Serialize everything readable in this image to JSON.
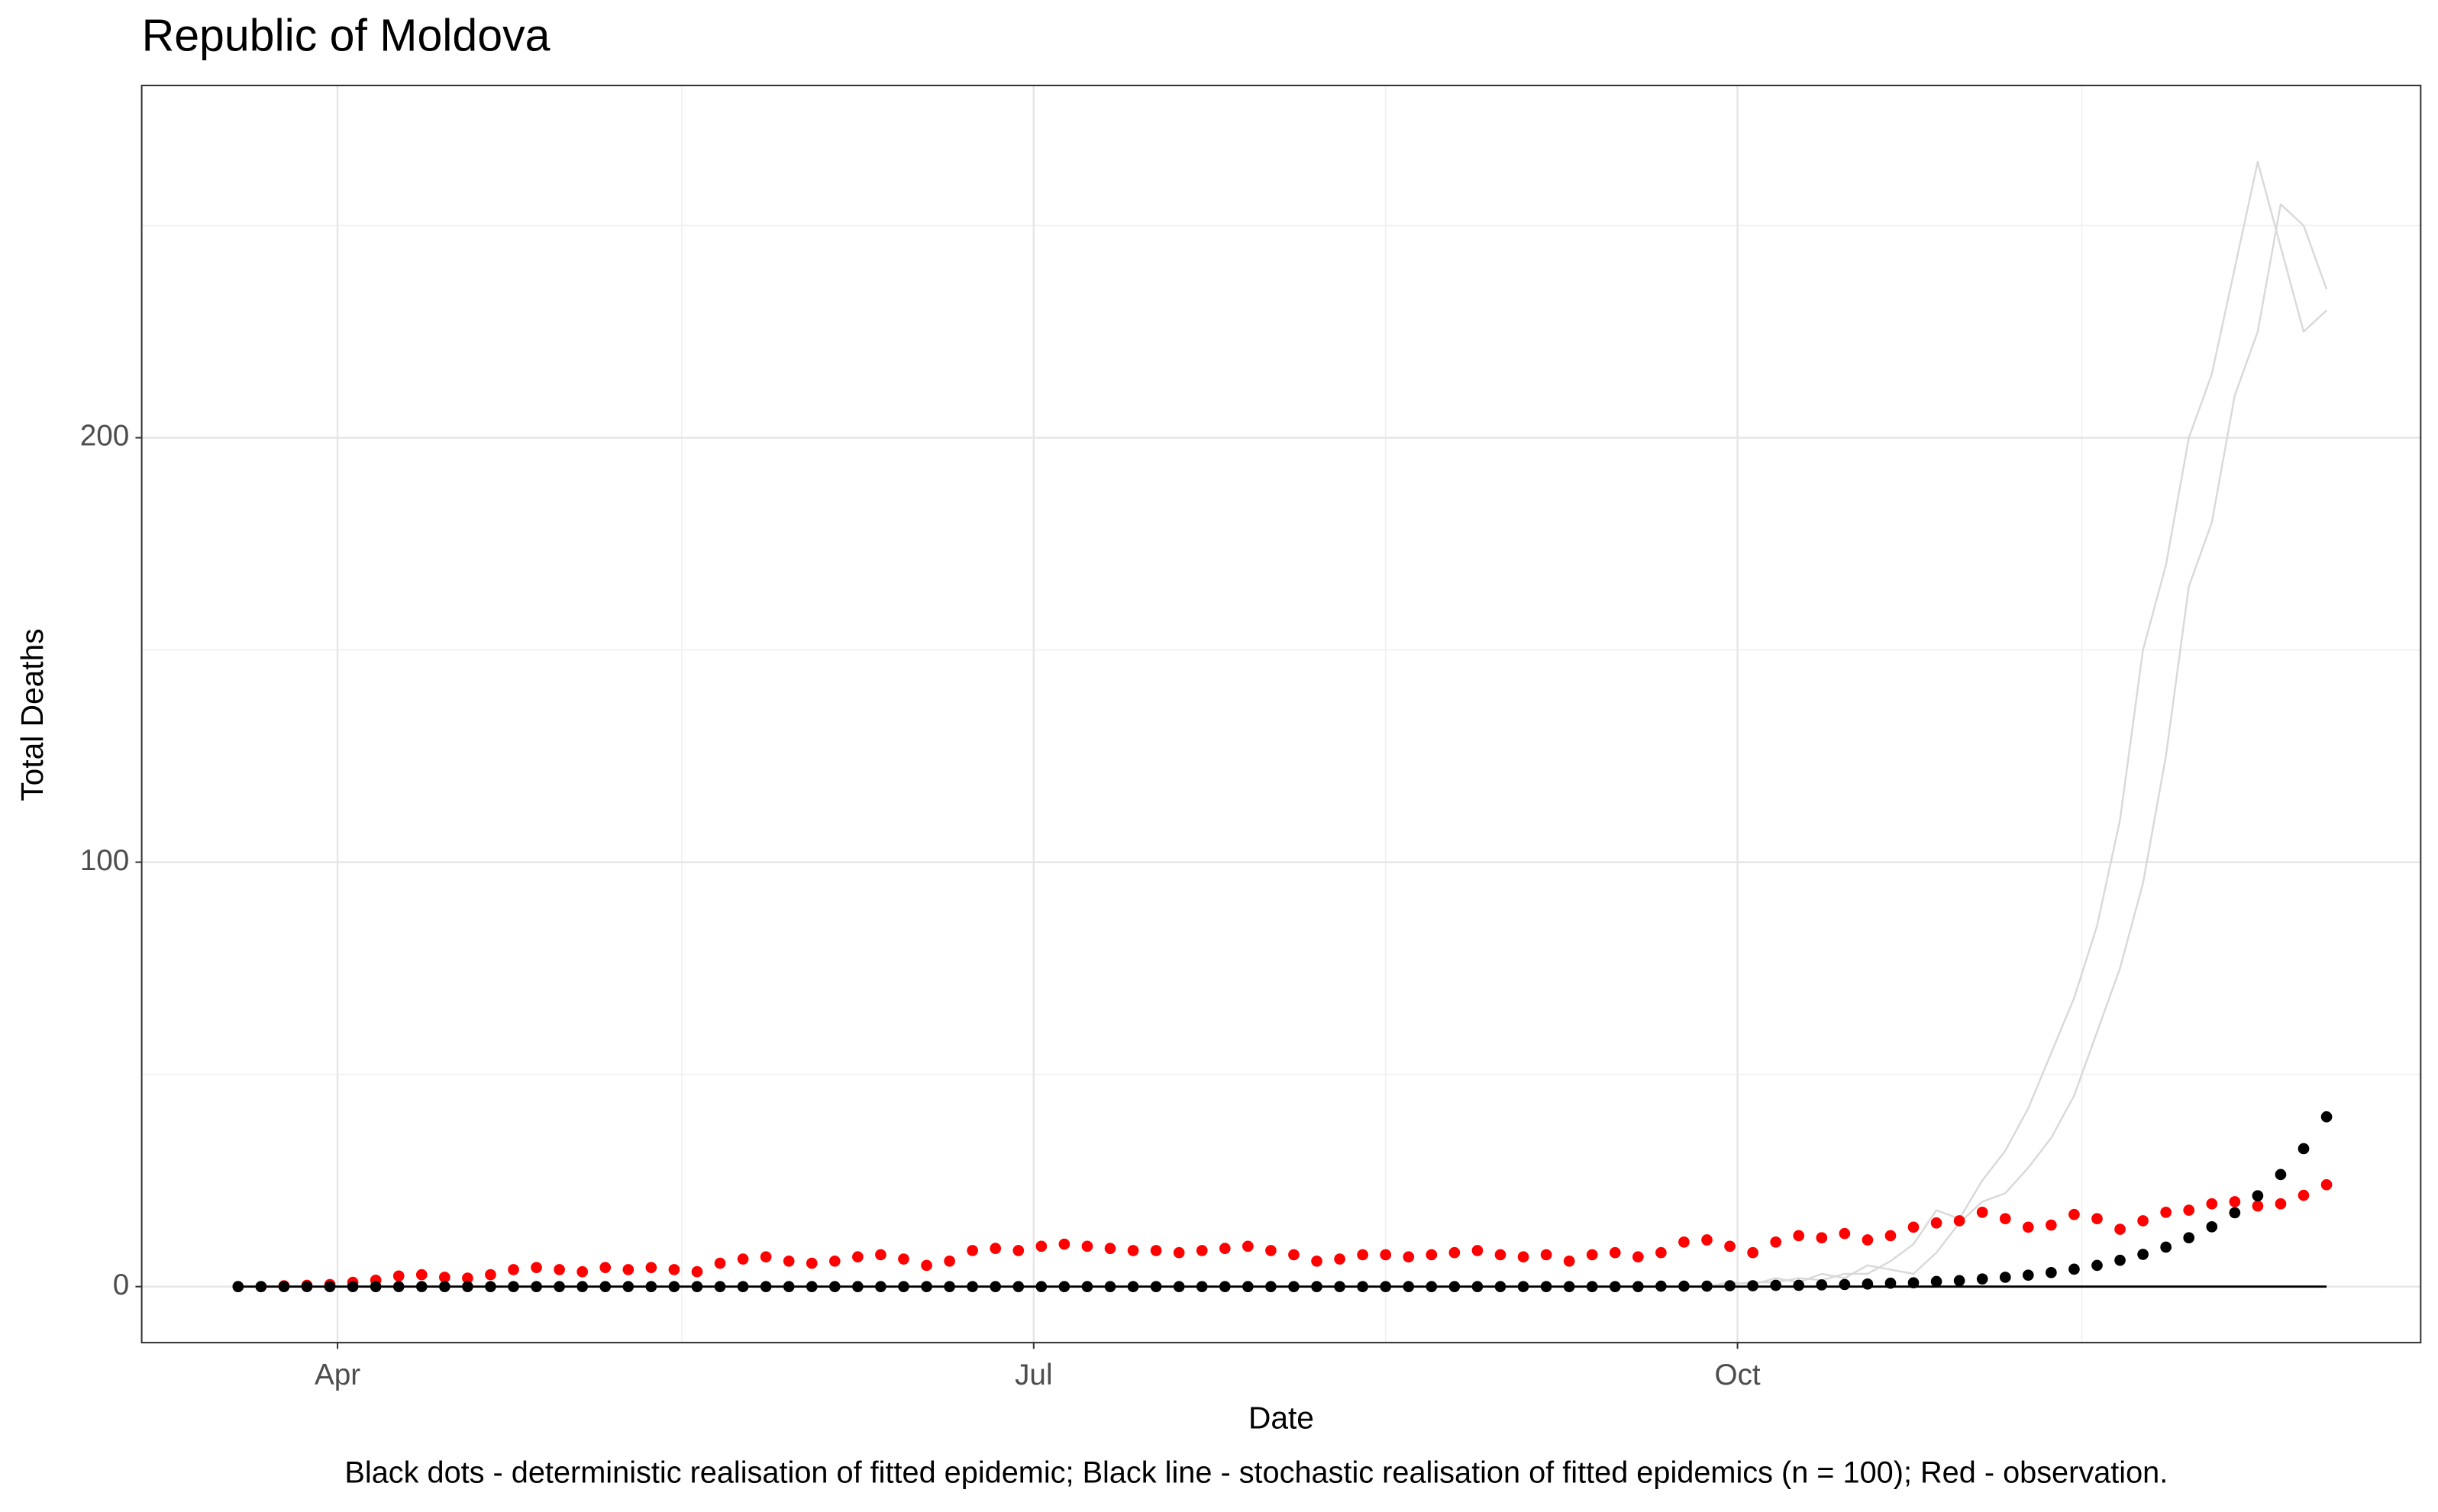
{
  "chart_data": {
    "type": "line",
    "title": "Republic of Moldova",
    "x_label": "Date",
    "y_label": "Total Deaths",
    "caption": "Black dots - deterministic realisation of fitted epidemic; Black line - stochastic realisation of fitted epidemics (n = 100); Red - observation.",
    "x": [
      79,
      82,
      85,
      88,
      91,
      94,
      97,
      100,
      103,
      106,
      109,
      112,
      115,
      118,
      121,
      124,
      127,
      130,
      133,
      136,
      139,
      142,
      145,
      148,
      151,
      154,
      157,
      160,
      163,
      166,
      169,
      172,
      175,
      178,
      181,
      184,
      187,
      190,
      193,
      196,
      199,
      202,
      205,
      208,
      211,
      214,
      217,
      220,
      223,
      226,
      229,
      232,
      235,
      238,
      241,
      244,
      247,
      250,
      253,
      256,
      259,
      262,
      265,
      268,
      271,
      274,
      277,
      280,
      283,
      286,
      289,
      292,
      295,
      298,
      301,
      304,
      307,
      310,
      313,
      316,
      319,
      322,
      325,
      328,
      331,
      334,
      337,
      340,
      343,
      346,
      349,
      352
    ],
    "xlim": [
      66.4,
      364.3
    ],
    "xticks": [
      {
        "value": 92,
        "label": "Apr"
      },
      {
        "value": 183,
        "label": "Jul"
      },
      {
        "value": 275,
        "label": "Oct"
      }
    ],
    "minor_xticks": [
      137,
      229,
      320
    ],
    "ylim": [
      -13.2,
      283
    ],
    "yticks": [
      0,
      100,
      200
    ],
    "minor_yticks": [
      50,
      150,
      250
    ],
    "grid": true,
    "series": [
      {
        "color": "#d9d9d9",
        "style": "line",
        "values": [
          null,
          null,
          null,
          null,
          null,
          null,
          null,
          null,
          null,
          null,
          null,
          null,
          null,
          null,
          null,
          null,
          null,
          null,
          null,
          null,
          null,
          null,
          null,
          null,
          null,
          null,
          null,
          null,
          null,
          null,
          null,
          null,
          null,
          null,
          null,
          null,
          null,
          null,
          null,
          null,
          null,
          null,
          null,
          null,
          null,
          null,
          null,
          null,
          null,
          null,
          null,
          null,
          null,
          null,
          null,
          null,
          null,
          null,
          null,
          null,
          null,
          null,
          null,
          null,
          0,
          1,
          0.5,
          2,
          1,
          3,
          2,
          5,
          4,
          3,
          8,
          15,
          20,
          22,
          28,
          35,
          45,
          60,
          75,
          95,
          125,
          165,
          180,
          210,
          225,
          255,
          250,
          235
        ]
      },
      {
        "color": "#d9d9d9",
        "style": "line",
        "values": [
          null,
          null,
          null,
          null,
          null,
          null,
          null,
          null,
          null,
          null,
          null,
          null,
          null,
          null,
          null,
          null,
          null,
          null,
          null,
          null,
          null,
          null,
          null,
          null,
          null,
          null,
          null,
          null,
          null,
          null,
          null,
          null,
          null,
          null,
          null,
          null,
          null,
          null,
          null,
          null,
          null,
          null,
          null,
          null,
          null,
          null,
          null,
          null,
          null,
          null,
          null,
          null,
          null,
          null,
          null,
          null,
          null,
          null,
          null,
          null,
          null,
          null,
          null,
          null,
          0,
          0.5,
          1,
          1,
          2,
          1.5,
          3,
          3,
          6,
          10,
          18,
          16,
          25,
          32,
          42,
          55,
          68,
          85,
          110,
          150,
          170,
          200,
          215,
          240,
          265,
          245,
          225,
          230
        ]
      },
      {
        "color": "#000000",
        "style": "line",
        "values": [
          0,
          0,
          0,
          0,
          0,
          0,
          0,
          0,
          0,
          0,
          0,
          0,
          0,
          0,
          0,
          0,
          0,
          0,
          0,
          0,
          0,
          0,
          0,
          0,
          0,
          0,
          0,
          0,
          0,
          0,
          0,
          0,
          0,
          0,
          0,
          0,
          0,
          0,
          0,
          0,
          0,
          0,
          0,
          0,
          0,
          0,
          0,
          0,
          0,
          0,
          0,
          0,
          0,
          0,
          0,
          0,
          0,
          0,
          0,
          0,
          0,
          0,
          0,
          0,
          0,
          0,
          0,
          0,
          0,
          0,
          0,
          0,
          0,
          0,
          0,
          0,
          0,
          0,
          0,
          0,
          0,
          0,
          0,
          0,
          0,
          0,
          0,
          0,
          0,
          0,
          0,
          0
        ]
      },
      {
        "color": "#ff0000",
        "style": "points",
        "values": [
          0,
          0,
          0.2,
          0.3,
          0.5,
          1,
          1.5,
          2.5,
          2.8,
          2.2,
          2,
          2.8,
          4,
          4.5,
          4,
          3.5,
          4.5,
          4,
          4.5,
          4,
          3.5,
          5.5,
          6.5,
          7,
          6,
          5.5,
          6,
          7,
          7.5,
          6.5,
          5,
          6,
          8.5,
          9,
          8.5,
          9.5,
          10,
          9.5,
          9,
          8.5,
          8.5,
          8,
          8.5,
          9,
          9.5,
          8.5,
          7.5,
          6,
          6.5,
          7.5,
          7.5,
          7,
          7.5,
          8,
          8.5,
          7.5,
          7,
          7.5,
          6,
          7.5,
          8,
          7,
          8,
          10.5,
          11,
          9.5,
          8,
          10.5,
          12,
          11.5,
          12.5,
          11,
          12,
          14,
          15,
          15.5,
          17.5,
          16,
          14,
          14.5,
          17,
          16,
          13.5,
          15.5,
          17.5,
          18,
          19.5,
          20,
          19,
          19.5,
          21.5,
          24
        ]
      },
      {
        "color": "#000000",
        "style": "points",
        "values": [
          0,
          0,
          0,
          0,
          0,
          0,
          0,
          0,
          0,
          0,
          0,
          0,
          0,
          0,
          0,
          0,
          0,
          0,
          0,
          0,
          0,
          0,
          0,
          0,
          0,
          0,
          0,
          0,
          0,
          0,
          0,
          0,
          0,
          0,
          0,
          0,
          0,
          0,
          0,
          0,
          0,
          0,
          0,
          0,
          0,
          0,
          0,
          0,
          0,
          0,
          0,
          0,
          0,
          0,
          0,
          0,
          0,
          0,
          0,
          0,
          0,
          0,
          0.1,
          0.1,
          0.1,
          0.2,
          0.2,
          0.3,
          0.3,
          0.4,
          0.5,
          0.6,
          0.8,
          0.9,
          1.2,
          1.4,
          1.8,
          2.2,
          2.7,
          3.3,
          4.1,
          5.0,
          6.2,
          7.6,
          9.3,
          11.5,
          14.1,
          17.4,
          21.4,
          26.4,
          32.5,
          40
        ]
      }
    ]
  }
}
